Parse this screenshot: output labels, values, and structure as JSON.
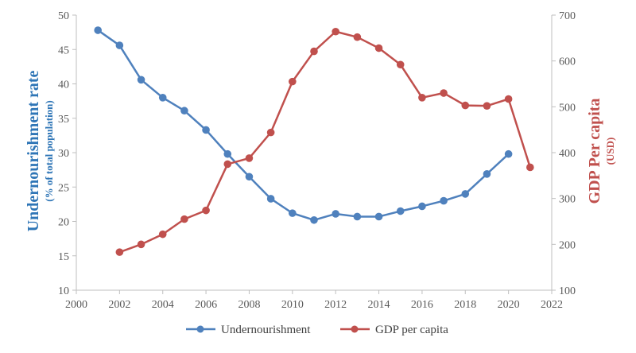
{
  "chart_data": {
    "type": "line",
    "x_axis": {
      "min": 2000,
      "max": 2022,
      "ticks": [
        2000,
        2002,
        2004,
        2006,
        2008,
        2010,
        2012,
        2014,
        2016,
        2018,
        2020,
        2022
      ]
    },
    "y_left": {
      "label": "Undernourishment rate",
      "sublabel": "(% of total population)",
      "min": 10,
      "max": 50,
      "ticks": [
        10,
        15,
        20,
        25,
        30,
        35,
        40,
        45,
        50
      ],
      "color": "#2E75B6"
    },
    "y_right": {
      "label": "GDP Per capita",
      "sublabel": "(USD)",
      "min": 100,
      "max": 700,
      "ticks": [
        100,
        200,
        300,
        400,
        500,
        600,
        700
      ],
      "color": "#C0504D"
    },
    "grid": false,
    "legend_position": "bottom",
    "series": [
      {
        "name": "Undernourishment",
        "axis": "left",
        "color": "#4F81BD",
        "x": [
          2001,
          2002,
          2003,
          2004,
          2005,
          2006,
          2007,
          2008,
          2009,
          2010,
          2011,
          2012,
          2013,
          2014,
          2015,
          2016,
          2017,
          2018,
          2019,
          2020
        ],
        "values": [
          47.8,
          45.6,
          40.6,
          38.0,
          36.1,
          33.3,
          29.8,
          26.5,
          23.3,
          21.2,
          20.2,
          21.1,
          20.7,
          20.7,
          21.5,
          22.2,
          23.0,
          24.0,
          26.9,
          29.8
        ]
      },
      {
        "name": "GDP per capita",
        "axis": "right",
        "color": "#C0504D",
        "x": [
          2002,
          2003,
          2004,
          2005,
          2006,
          2007,
          2008,
          2009,
          2010,
          2011,
          2012,
          2013,
          2014,
          2015,
          2016,
          2017,
          2018,
          2019,
          2020,
          2021
        ],
        "values": [
          183,
          200,
          222,
          255,
          274,
          375,
          388,
          444,
          555,
          621,
          664,
          652,
          628,
          592,
          520,
          530,
          503,
          502,
          517,
          368
        ]
      }
    ]
  }
}
